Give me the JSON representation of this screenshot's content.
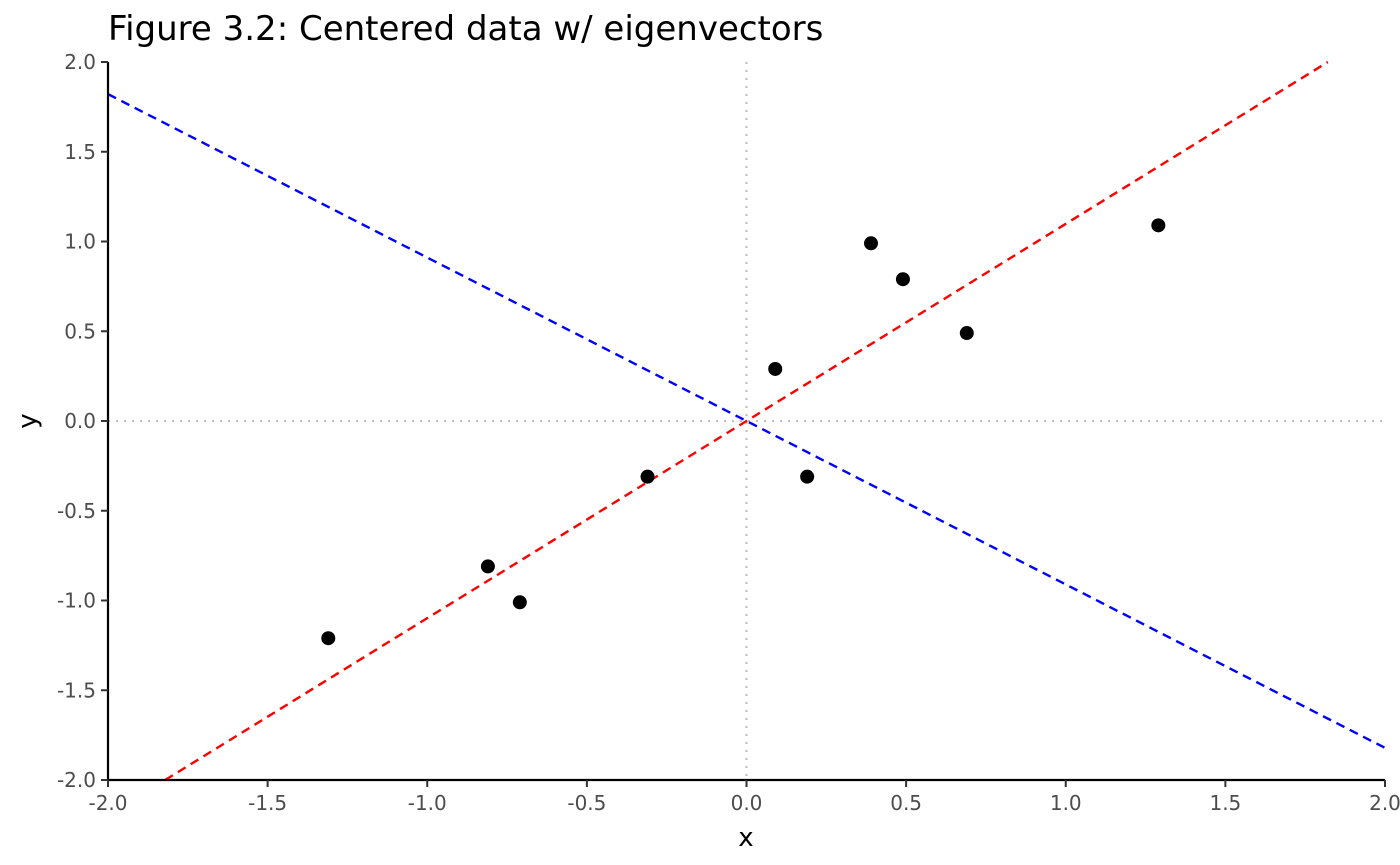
{
  "chart_data": {
    "type": "scatter",
    "title": "Figure 3.2: Centered data w/ eigenvectors",
    "xlabel": "x",
    "ylabel": "y",
    "xlim": [
      -2.0,
      2.0
    ],
    "ylim": [
      -2.0,
      2.0
    ],
    "x_ticks": [
      "-2.0",
      "-1.5",
      "-1.0",
      "-0.5",
      "0.0",
      "0.5",
      "1.0",
      "1.5",
      "2.0"
    ],
    "y_ticks": [
      "-2.0",
      "-1.5",
      "-1.0",
      "-0.5",
      "0.0",
      "0.5",
      "1.0",
      "1.5",
      "2.0"
    ],
    "grid": false,
    "reference_lines": {
      "x": 0,
      "y": 0,
      "style": "dotted",
      "color": "#bdbdbd"
    },
    "points": [
      {
        "x": 0.69,
        "y": 0.49
      },
      {
        "x": -1.31,
        "y": -1.21
      },
      {
        "x": 0.39,
        "y": 0.99
      },
      {
        "x": 0.09,
        "y": 0.29
      },
      {
        "x": 1.29,
        "y": 1.09
      },
      {
        "x": 0.49,
        "y": 0.79
      },
      {
        "x": 0.19,
        "y": -0.31
      },
      {
        "x": -0.81,
        "y": -0.81
      },
      {
        "x": -0.31,
        "y": -0.31
      },
      {
        "x": -0.71,
        "y": -1.01
      }
    ],
    "point_color": "#000000",
    "eigenvectors": [
      {
        "slope": 1.0983,
        "intercept": 0,
        "color": "#ff0000",
        "style": "dashed"
      },
      {
        "slope": -0.9105,
        "intercept": 0,
        "color": "#0000ff",
        "style": "dashed"
      }
    ]
  }
}
